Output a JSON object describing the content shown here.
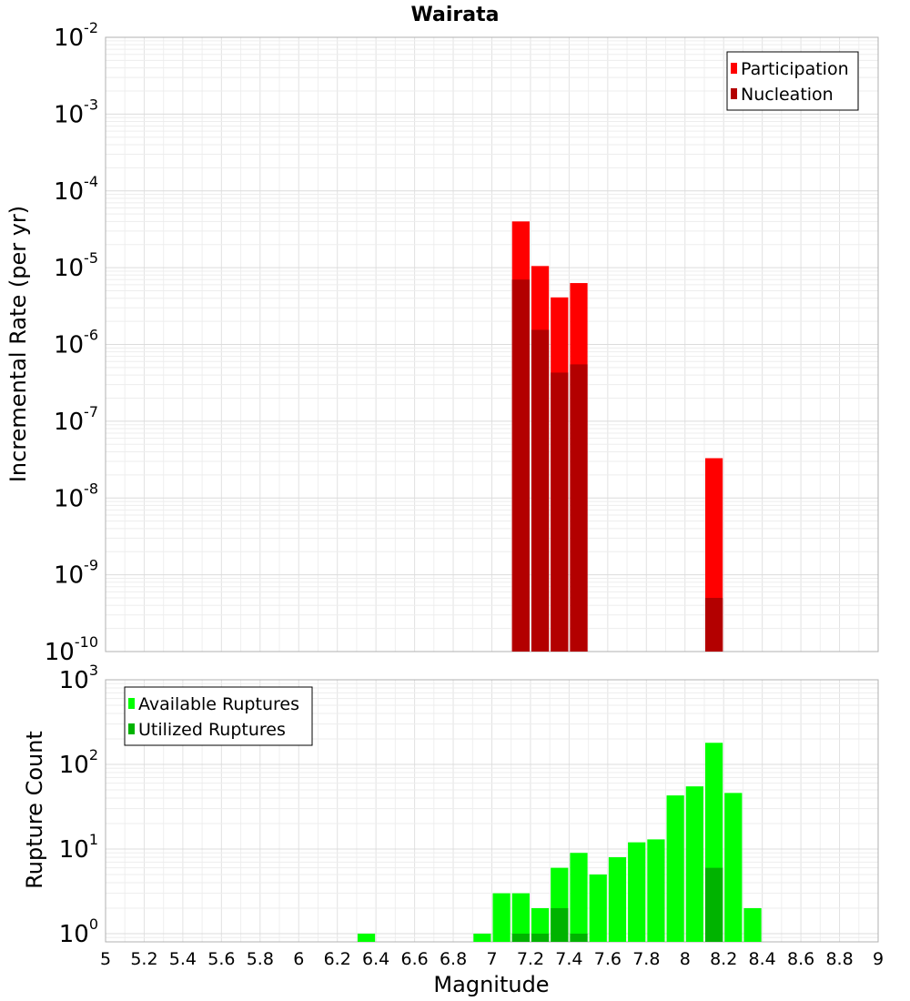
{
  "chart_data": [
    {
      "type": "bar",
      "title": "Wairata",
      "xlabel": "Magnitude",
      "ylabel": "Incremental Rate (per yr)",
      "yscale": "log",
      "xlim": [
        5,
        9
      ],
      "ylim_exp": [
        -10,
        -2
      ],
      "y_tick_labels": [
        {
          "base": "10",
          "exp": "-2"
        },
        {
          "base": "10",
          "exp": "-3"
        },
        {
          "base": "10",
          "exp": "-4"
        },
        {
          "base": "10",
          "exp": "-5"
        },
        {
          "base": "10",
          "exp": "-6"
        },
        {
          "base": "10",
          "exp": "-7"
        },
        {
          "base": "10",
          "exp": "-8"
        },
        {
          "base": "10",
          "exp": "-9"
        },
        {
          "base": "10",
          "exp": "-10"
        }
      ],
      "bin_width": 0.1,
      "legend_position": "top-right",
      "series": [
        {
          "name": "Participation",
          "color": "#ff0000",
          "x": [
            7.15,
            7.25,
            7.35,
            7.45,
            8.15
          ],
          "values": [
            4e-05,
            1.05e-05,
            4.1e-06,
            6.3e-06,
            3.3e-08
          ]
        },
        {
          "name": "Nucleation",
          "color": "#b30000",
          "x": [
            7.15,
            7.25,
            7.35,
            7.45,
            8.15
          ],
          "values": [
            7e-06,
            1.55e-06,
            4.3e-07,
            5.5e-07,
            5e-10
          ]
        }
      ]
    },
    {
      "type": "bar",
      "xlabel": "Magnitude",
      "ylabel": "Rupture Count",
      "yscale": "log",
      "xlim": [
        5,
        9
      ],
      "ylim": [
        0.8,
        1000
      ],
      "x_ticks": [
        "5",
        "5.2",
        "5.4",
        "5.6",
        "5.8",
        "6",
        "6.2",
        "6.4",
        "6.6",
        "6.8",
        "7",
        "7.2",
        "7.4",
        "7.6",
        "7.8",
        "8",
        "8.2",
        "8.4",
        "8.6",
        "8.8",
        "9"
      ],
      "y_tick_labels": [
        {
          "base": "10",
          "exp": "3"
        },
        {
          "base": "10",
          "exp": "2"
        },
        {
          "base": "10",
          "exp": "1"
        },
        {
          "base": "10",
          "exp": "0"
        }
      ],
      "bin_width": 0.1,
      "legend_position": "top-left",
      "series": [
        {
          "name": "Available Ruptures",
          "color": "#00ff00",
          "x": [
            6.35,
            6.95,
            7.05,
            7.15,
            7.25,
            7.35,
            7.45,
            7.55,
            7.65,
            7.75,
            7.85,
            7.95,
            8.05,
            8.15,
            8.25,
            8.35
          ],
          "values": [
            1,
            1,
            3,
            3,
            2,
            6,
            9,
            5,
            8,
            12,
            13,
            43,
            55,
            180,
            46,
            2
          ]
        },
        {
          "name": "Utilized Ruptures",
          "color": "#00b300",
          "x": [
            7.15,
            7.25,
            7.35,
            7.45,
            8.15
          ],
          "values": [
            1,
            1,
            2,
            1,
            6
          ]
        }
      ]
    }
  ]
}
